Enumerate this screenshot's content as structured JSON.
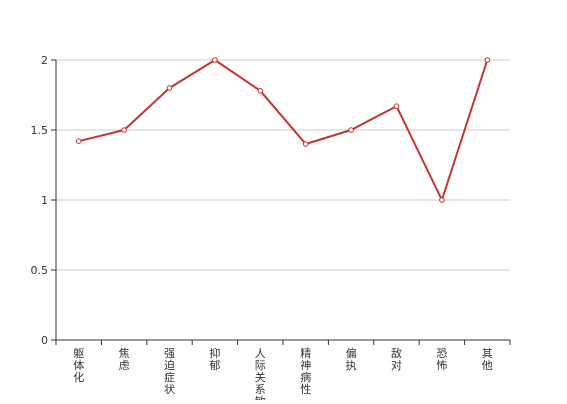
{
  "chart_data": {
    "type": "line",
    "title": "",
    "xlabel": "",
    "ylabel": "",
    "categories": [
      "躯体化",
      "焦虑",
      "强迫症状",
      "抑郁",
      "人际关系敏感",
      "精神病性",
      "偏执",
      "敌对",
      "恐怖",
      "其他"
    ],
    "series": [
      {
        "values": [
          1.42,
          1.5,
          1.8,
          2.0,
          1.78,
          1.4,
          1.5,
          1.67,
          1.0,
          2.0
        ]
      }
    ],
    "ylim": [
      0,
      2
    ],
    "yticks": [
      "0",
      "0.5",
      "1",
      "1.5",
      "2"
    ],
    "grid": true,
    "legend": "none",
    "colors": {
      "line": "#c23531",
      "grid": "#cccccc",
      "axis": "#333333",
      "text": "#333333"
    }
  }
}
